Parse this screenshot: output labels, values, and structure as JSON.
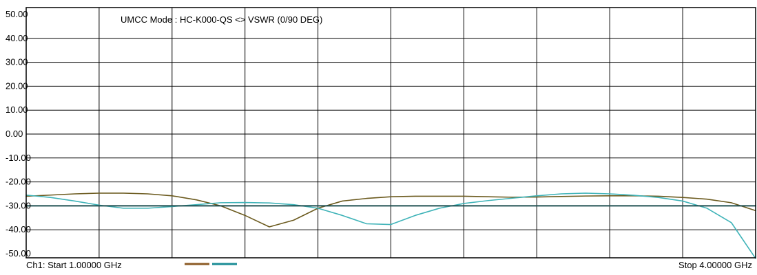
{
  "chart_data": {
    "type": "line",
    "title": "UMCC  Mode : HC-K000-QS <> VSWR  (0/90 DEG)",
    "x": [
      1.0,
      1.1,
      1.2,
      1.3,
      1.4,
      1.5,
      1.6,
      1.7,
      1.8,
      1.9,
      2.0,
      2.1,
      2.2,
      2.3,
      2.4,
      2.5,
      2.6,
      2.7,
      2.8,
      2.9,
      3.0,
      3.1,
      3.2,
      3.3,
      3.4,
      3.5,
      3.6,
      3.7,
      3.8,
      3.9,
      4.0
    ],
    "xlim": [
      1.0,
      4.0
    ],
    "ylim": [
      -50,
      50
    ],
    "yticks": [
      "50.00",
      "40.00",
      "30.00",
      "20.00",
      "10.00",
      "0.00",
      "-10.00",
      "-20.00",
      "-30.00",
      "-40.00",
      "-50.00"
    ],
    "yticks_values": [
      50,
      40,
      30,
      20,
      10,
      0,
      -10,
      -20,
      -30,
      -40,
      -50
    ],
    "grid": true,
    "series": [
      {
        "color": "#6b5a1e",
        "values": [
          -26,
          -25.5,
          -25,
          -24.7,
          -24.7,
          -25,
          -25.8,
          -27.5,
          -30,
          -34,
          -38.8,
          -36,
          -31,
          -28,
          -26.9,
          -26.2,
          -26,
          -26,
          -26,
          -26.2,
          -26.4,
          -26.3,
          -26.1,
          -25.9,
          -25.8,
          -25.8,
          -26,
          -26.5,
          -27.2,
          -28.7,
          -32
        ]
      },
      {
        "color": "#3fb3b8",
        "values": [
          -25.5,
          -26.5,
          -28,
          -29.7,
          -31,
          -31,
          -30.3,
          -29.5,
          -28.7,
          -28.6,
          -28.8,
          -29.5,
          -31,
          -34,
          -37.5,
          -37.8,
          -34,
          -31,
          -29,
          -27.8,
          -26.8,
          -25.8,
          -25,
          -24.7,
          -25,
          -25.6,
          -26.5,
          -28,
          -31,
          -37,
          -52
        ]
      },
      {
        "color": "#1f4f50",
        "values": [
          -30,
          -30,
          -30,
          -30,
          -30,
          -30,
          -30,
          -30,
          -30,
          -30,
          -30,
          -30,
          -30,
          -30,
          -30,
          -30,
          -30,
          -30,
          -30,
          -30,
          -30,
          -30,
          -30,
          -30,
          -30,
          -30,
          -30,
          -30,
          -30,
          -30,
          -30
        ]
      }
    ]
  },
  "footer": {
    "left_label": "Ch1: Start  1.00000 GHz",
    "right_label": "Stop  4.00000 GHz",
    "legend_colors": [
      "#8b5a24",
      "#1a8c95"
    ]
  }
}
